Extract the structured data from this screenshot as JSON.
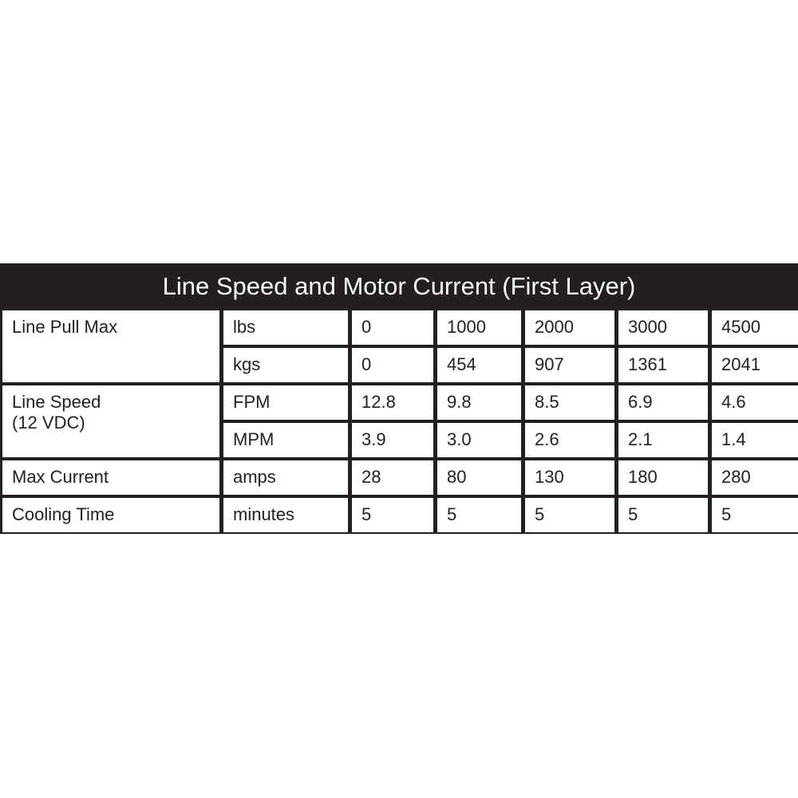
{
  "title": "Line Speed and Motor Current (First Layer)",
  "groups": [
    {
      "label": "Line Pull Max",
      "rows": [
        {
          "unit": "lbs",
          "values": [
            "0",
            "1000",
            "2000",
            "3000",
            "4500"
          ]
        },
        {
          "unit": "kgs",
          "values": [
            "0",
            "454",
            "907",
            "1361",
            "2041"
          ]
        }
      ]
    },
    {
      "label": "Line Speed",
      "sublabel": "(12 VDC)",
      "rows": [
        {
          "unit": "FPM",
          "values": [
            "12.8",
            "9.8",
            "8.5",
            "6.9",
            "4.6"
          ]
        },
        {
          "unit": "MPM",
          "values": [
            "3.9",
            "3.0",
            "2.6",
            "2.1",
            "1.4"
          ]
        }
      ]
    },
    {
      "label": "Max Current",
      "rows": [
        {
          "unit": "amps",
          "values": [
            "28",
            "80",
            "130",
            "180",
            "280"
          ]
        }
      ]
    },
    {
      "label": "Cooling Time",
      "rows": [
        {
          "unit": "minutes",
          "values": [
            "5",
            "5",
            "5",
            "5",
            "5"
          ]
        }
      ]
    }
  ]
}
